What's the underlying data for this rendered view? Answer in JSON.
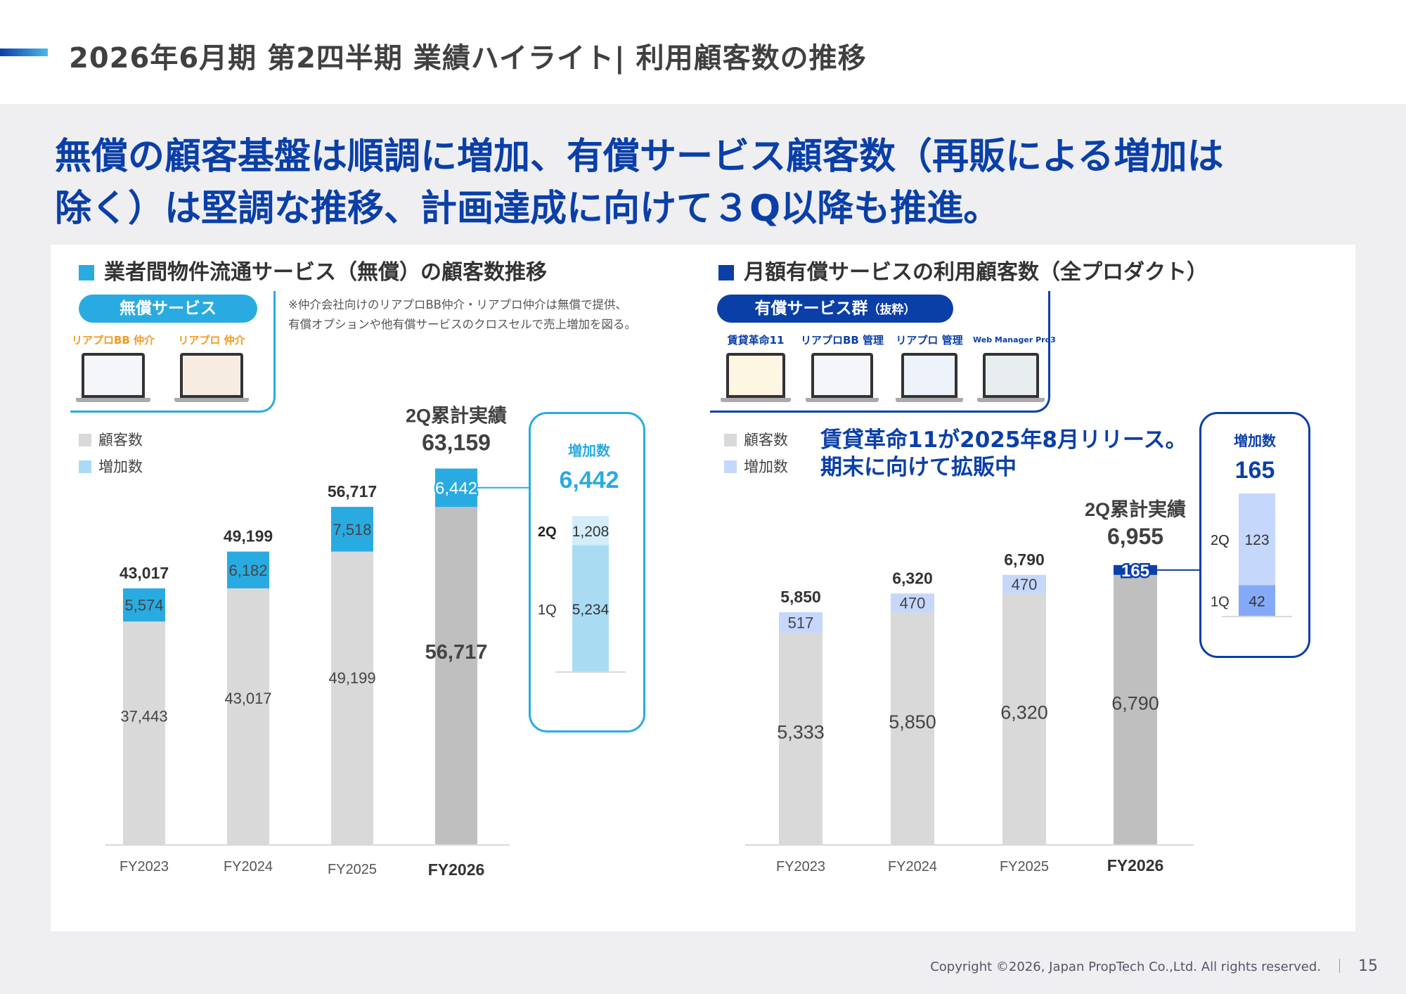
{
  "header": {
    "title": "2026年6月期 第2四半期 業績ハイライト| 利用顧客数の推移"
  },
  "headline": {
    "line1": "無償の顧客基盤は順調に増加、有償サービス顧客数（再販による増加は",
    "line2": "除く）は堅調な推移、計画達成に向けて３Q以降も推進。"
  },
  "left": {
    "section_title": "業者間物件流通サービス（無償）の顧客数推移",
    "pill": "無償サービス",
    "note_line1": "※仲介会社向けのリアプロBB仲介・リアプロ仲介は無償で提供、",
    "note_line2": "有償オプションや他有償サービスのクロスセルで売上増加を図る。",
    "products": [
      "リアプロBB 仲介",
      "リアプロ 仲介"
    ],
    "legend": [
      "顧客数",
      "増加数"
    ],
    "cum_label": "2Q累計実績",
    "cum_value": "63,159",
    "qbox": {
      "title": "増加数",
      "total": "6,442",
      "q2_label": "2Q",
      "q2_value": "1,208",
      "q1_label": "1Q",
      "q1_value": "5,234"
    },
    "colors": {
      "base": "#d9d9d9",
      "base_current": "#bfbfbf",
      "increase": "#29abe2",
      "q1": "#a9dcf3",
      "q2": "#d3edfa",
      "accent": "#29abe2"
    }
  },
  "right": {
    "section_title": "月額有償サービスの利用顧客数（全プロダクト）",
    "pill": "有償サービス群",
    "pill_sub": "（抜粋）",
    "products": [
      "賃貸革命11",
      "リアプロBB 管理",
      "リアプロ 管理",
      "Web Manager Pro3"
    ],
    "legend": [
      "顧客数",
      "増加数"
    ],
    "callout_line1": "賃貸革命11が2025年8月リリース。",
    "callout_line2": "期末に向けて拡販中",
    "cum_label": "2Q累計実績",
    "cum_value": "6,955",
    "qbox": {
      "title": "増加数",
      "total": "165",
      "q2_label": "2Q",
      "q2_value": "123",
      "q1_label": "1Q",
      "q1_value": "42"
    },
    "colors": {
      "base": "#d9d9d9",
      "base_current": "#bfbfbf",
      "increase": "#c5d7fb",
      "q1": "#84aaf7",
      "q2": "#c5d7fb",
      "accent": "#0a3fa8"
    }
  },
  "chart_data": [
    {
      "type": "bar",
      "stacked": true,
      "title": "業者間物件流通サービス（無償）の顧客数推移",
      "categories": [
        "FY2023",
        "FY2024",
        "FY2025",
        "FY2026"
      ],
      "series": [
        {
          "name": "顧客数",
          "values": [
            37443,
            43017,
            49199,
            56717
          ]
        },
        {
          "name": "増加数",
          "values": [
            5574,
            6182,
            7518,
            6442
          ]
        }
      ],
      "totals": [
        "43,017",
        "49,199",
        "56,717",
        "63,159"
      ],
      "base_labels": [
        "37,443",
        "43,017",
        "49,199",
        "56,717"
      ],
      "inc_labels": [
        "5,574",
        "6,182",
        "7,518",
        "6,442"
      ],
      "ylim": [
        0,
        65000
      ],
      "grid": false,
      "legend_position": "top-left"
    },
    {
      "type": "bar",
      "stacked": true,
      "title": "月額有償サービスの利用顧客数（全プロダクト）",
      "categories": [
        "FY2023",
        "FY2024",
        "FY2025",
        "FY2026"
      ],
      "series": [
        {
          "name": "顧客数",
          "values": [
            5333,
            5850,
            6320,
            6790
          ]
        },
        {
          "name": "増加数",
          "values": [
            517,
            470,
            470,
            165
          ]
        }
      ],
      "totals": [
        "5,850",
        "6,320",
        "6,790",
        "6,955"
      ],
      "base_labels": [
        "5,333",
        "5,850",
        "6,320",
        "6,790"
      ],
      "inc_labels": [
        "517",
        "470",
        "470",
        "165"
      ],
      "ylim": [
        0,
        7000
      ],
      "grid": false,
      "legend_position": "top-left"
    }
  ],
  "footer": {
    "copyright": "Copyright ©2026, Japan PropTech Co.,Ltd. All rights reserved.",
    "page": "15"
  }
}
